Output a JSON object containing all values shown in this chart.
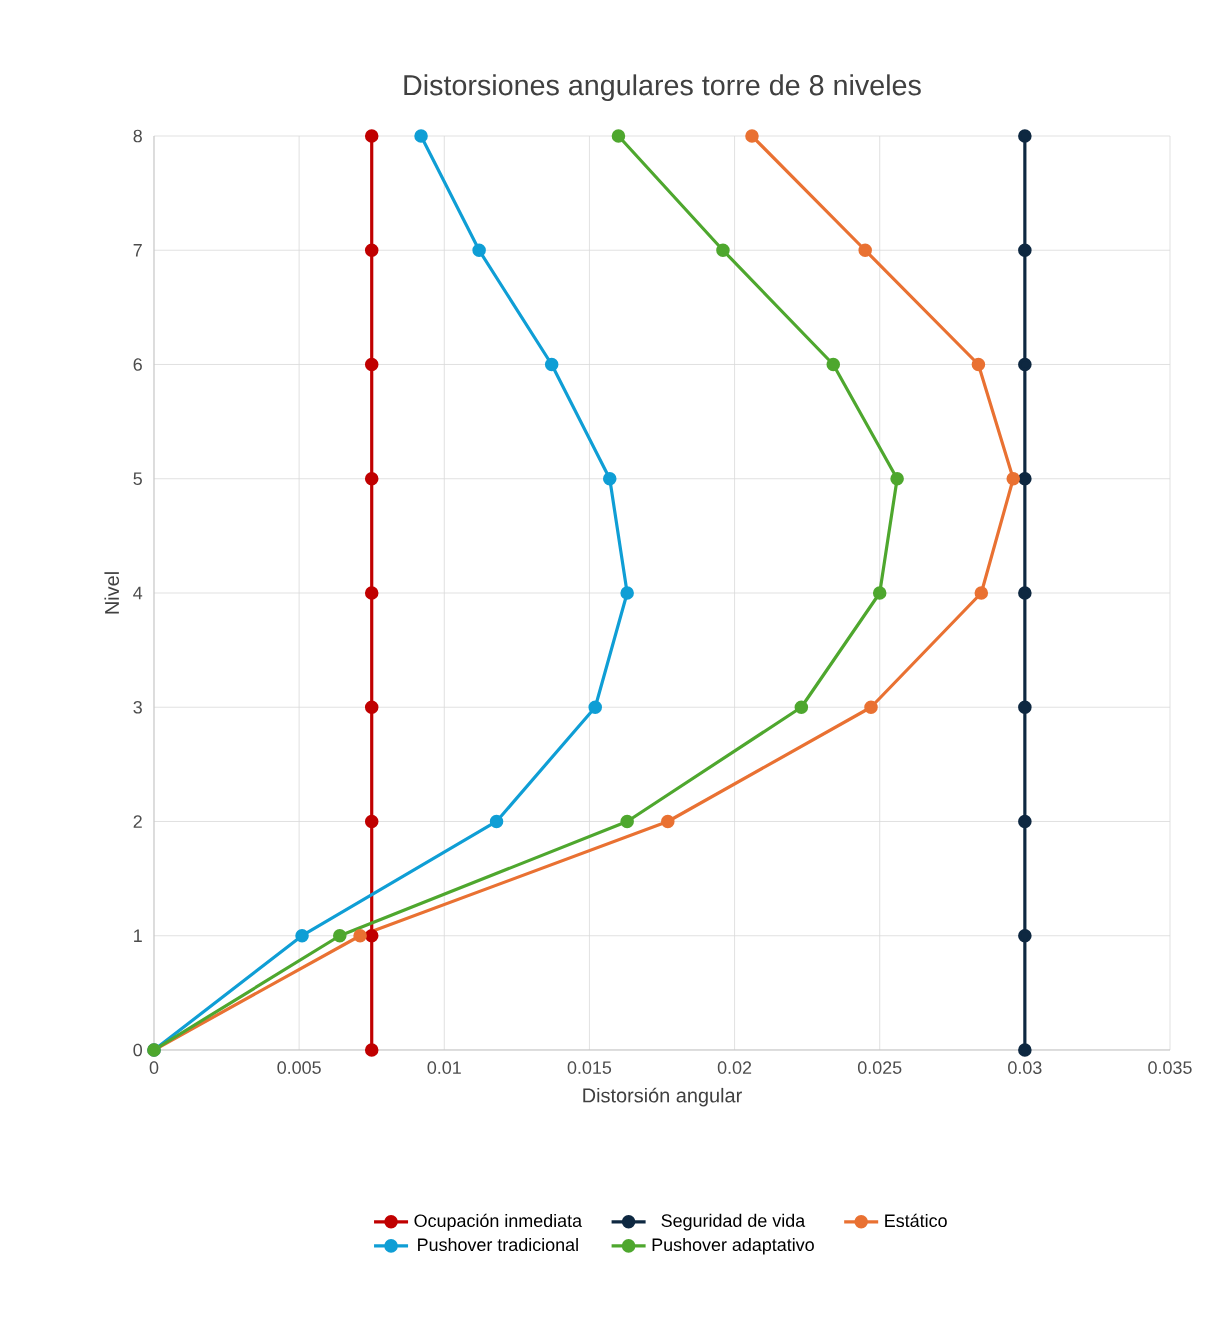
{
  "chart_data": {
    "type": "line",
    "title": "Distorsiones angulares torre de 8 niveles",
    "xlabel": "Distorsión angular",
    "ylabel": "Nivel",
    "xlim": [
      0,
      0.035
    ],
    "xticks": [
      0,
      0.005,
      0.01,
      0.015,
      0.02,
      0.025,
      0.03,
      0.035
    ],
    "ylim": [
      0,
      8
    ],
    "yticks": [
      0,
      1,
      2,
      3,
      4,
      5,
      6,
      7,
      8
    ],
    "grid": true,
    "legend": "bottom",
    "marker": "circle",
    "line_style": "solid",
    "series": [
      {
        "name": "Ocupación inmediata",
        "color": "#c00000",
        "x": [
          0.0075,
          0.0075,
          0.0075,
          0.0075,
          0.0075,
          0.0075,
          0.0075,
          0.0075,
          0.0075
        ],
        "values": [
          0,
          1,
          2,
          3,
          4,
          5,
          6,
          7,
          8
        ]
      },
      {
        "name": "Seguridad de vida",
        "color": "#0e2841",
        "x": [
          0.03,
          0.03,
          0.03,
          0.03,
          0.03,
          0.03,
          0.03,
          0.03,
          0.03
        ],
        "values": [
          0,
          1,
          2,
          3,
          4,
          5,
          6,
          7,
          8
        ]
      },
      {
        "name": "Estático",
        "color": "#e97132",
        "x": [
          0,
          0.0071,
          0.0177,
          0.0247,
          0.0285,
          0.0296,
          0.0284,
          0.0245,
          0.0206
        ],
        "values": [
          0,
          1,
          2,
          3,
          4,
          5,
          6,
          7,
          8
        ]
      },
      {
        "name": "Pushover tradicional",
        "color": "#0f9ed5",
        "x": [
          0,
          0.0051,
          0.0118,
          0.0152,
          0.0163,
          0.0157,
          0.0137,
          0.0112,
          0.0092
        ],
        "values": [
          0,
          1,
          2,
          3,
          4,
          5,
          6,
          7,
          8
        ]
      },
      {
        "name": "Pushover adaptativo",
        "color": "#4ea72e",
        "x": [
          0,
          0.0064,
          0.0163,
          0.0223,
          0.025,
          0.0256,
          0.0234,
          0.0196,
          0.016
        ],
        "values": [
          0,
          1,
          2,
          3,
          4,
          5,
          6,
          7,
          8
        ]
      }
    ]
  }
}
